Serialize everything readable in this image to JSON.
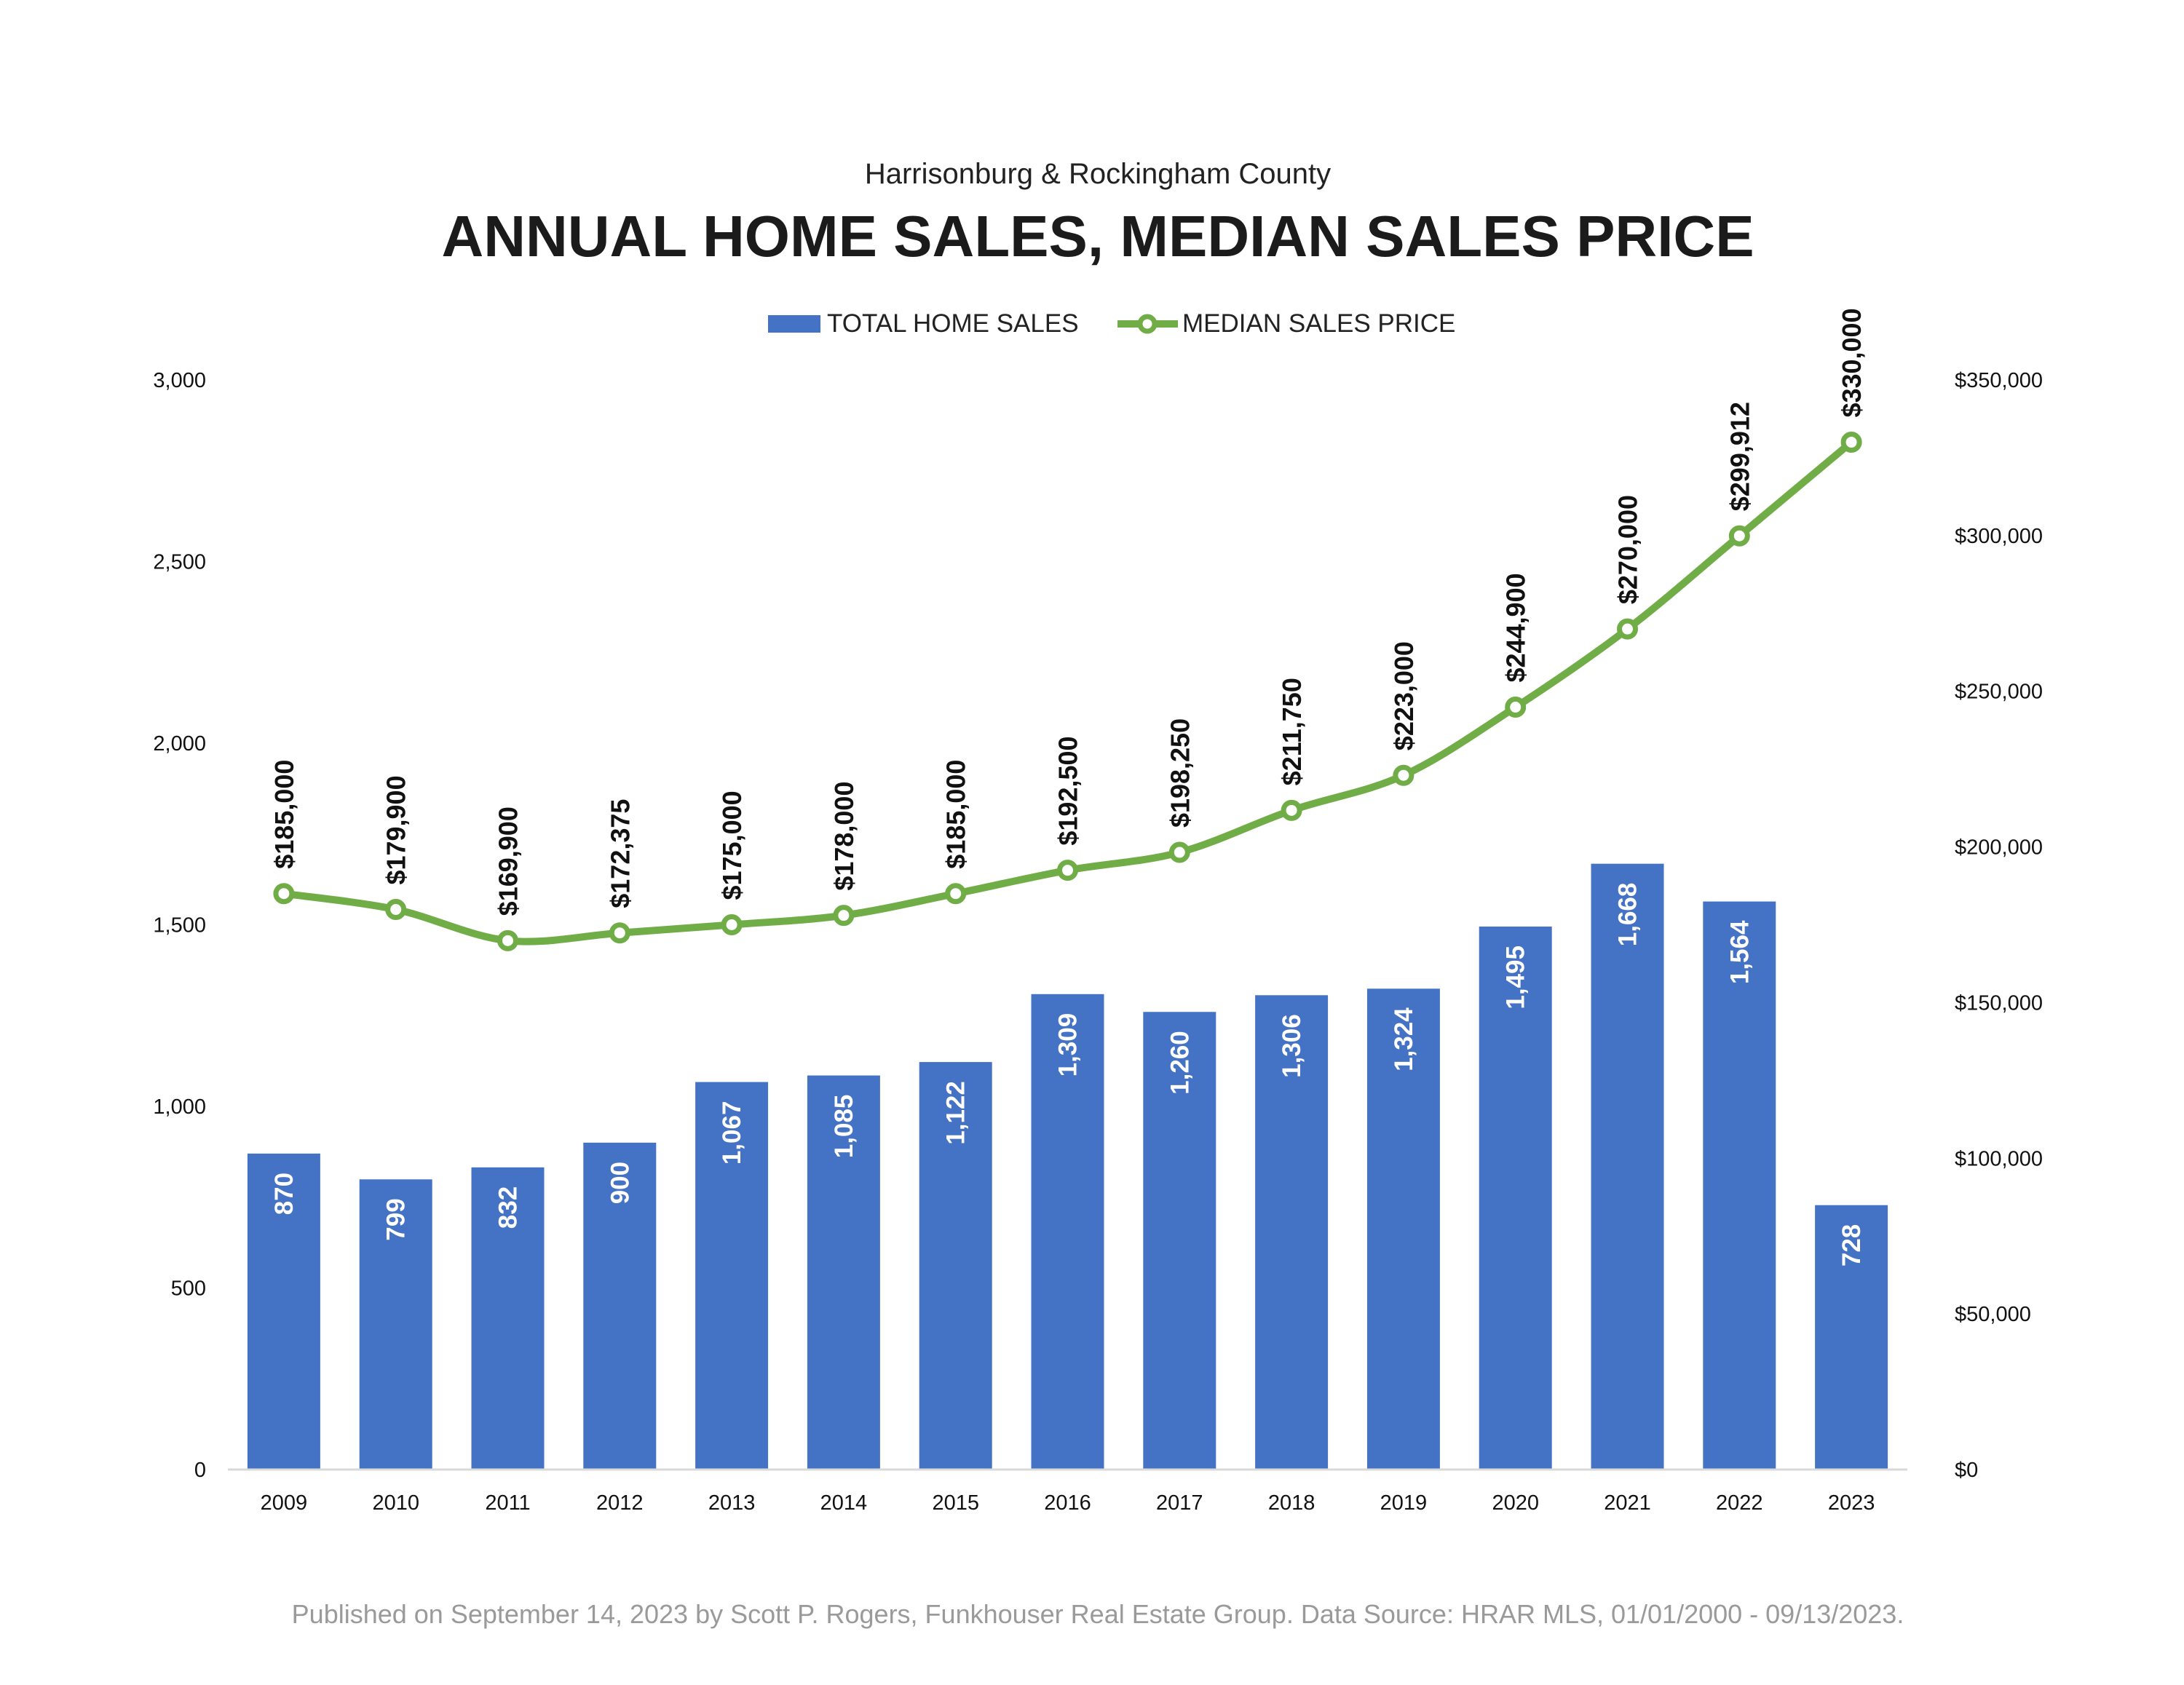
{
  "header": {
    "subtitle": "Harrisonburg & Rockingham County",
    "title": "ANNUAL HOME SALES, MEDIAN SALES PRICE"
  },
  "legend": {
    "bars_label": "TOTAL HOME SALES",
    "line_label": "MEDIAN SALES PRICE"
  },
  "footnote": "Published on September 14, 2023 by Scott P. Rogers, Funkhouser Real Estate Group. Data Source: HRAR MLS, 01/01/2000 - 09/13/2023.",
  "colors": {
    "bars": "#4472c4",
    "line": "#70ad47",
    "axis": "#d9d9d9"
  },
  "chart_data": {
    "type": "bar",
    "title": "ANNUAL HOME SALES, MEDIAN SALES PRICE",
    "subtitle": "Harrisonburg & Rockingham County",
    "categories": [
      "2009",
      "2010",
      "2011",
      "2012",
      "2013",
      "2014",
      "2015",
      "2016",
      "2017",
      "2018",
      "2019",
      "2020",
      "2021",
      "2022",
      "2023"
    ],
    "series": [
      {
        "name": "TOTAL HOME SALES",
        "type": "bar",
        "axis": "left",
        "values": [
          870,
          799,
          832,
          900,
          1067,
          1085,
          1122,
          1309,
          1260,
          1306,
          1324,
          1495,
          1668,
          1564,
          728
        ],
        "labels": [
          "870",
          "799",
          "832",
          "900",
          "1,067",
          "1,085",
          "1,122",
          "1,309",
          "1,260",
          "1,306",
          "1,324",
          "1,495",
          "1,668",
          "1,564",
          "728"
        ]
      },
      {
        "name": "MEDIAN SALES PRICE",
        "type": "line",
        "axis": "right",
        "values": [
          185000,
          179900,
          169900,
          172375,
          175000,
          178000,
          185000,
          192500,
          198250,
          211750,
          223000,
          244900,
          270000,
          299912,
          330000
        ],
        "labels": [
          "$185,000",
          "$179,900",
          "$169,900",
          "$172,375",
          "$175,000",
          "$178,000",
          "$185,000",
          "$192,500",
          "$198,250",
          "$211,750",
          "$223,000",
          "$244,900",
          "$270,000",
          "$299,912",
          "$330,000"
        ]
      }
    ],
    "y_left": {
      "range": [
        0,
        3000
      ],
      "ticks": [
        0,
        500,
        1000,
        1500,
        2000,
        2500,
        3000
      ],
      "tick_labels": [
        "0",
        "500",
        "1,000",
        "1,500",
        "2,000",
        "2,500",
        "3,000"
      ]
    },
    "y_right": {
      "range": [
        0,
        350000
      ],
      "ticks": [
        0,
        50000,
        100000,
        150000,
        200000,
        250000,
        300000,
        350000
      ],
      "tick_labels": [
        "$0",
        "$50,000",
        "$100,000",
        "$150,000",
        "$200,000",
        "$250,000",
        "$300,000",
        "$350,000"
      ]
    },
    "grid": false,
    "legend_position": "top-center"
  }
}
